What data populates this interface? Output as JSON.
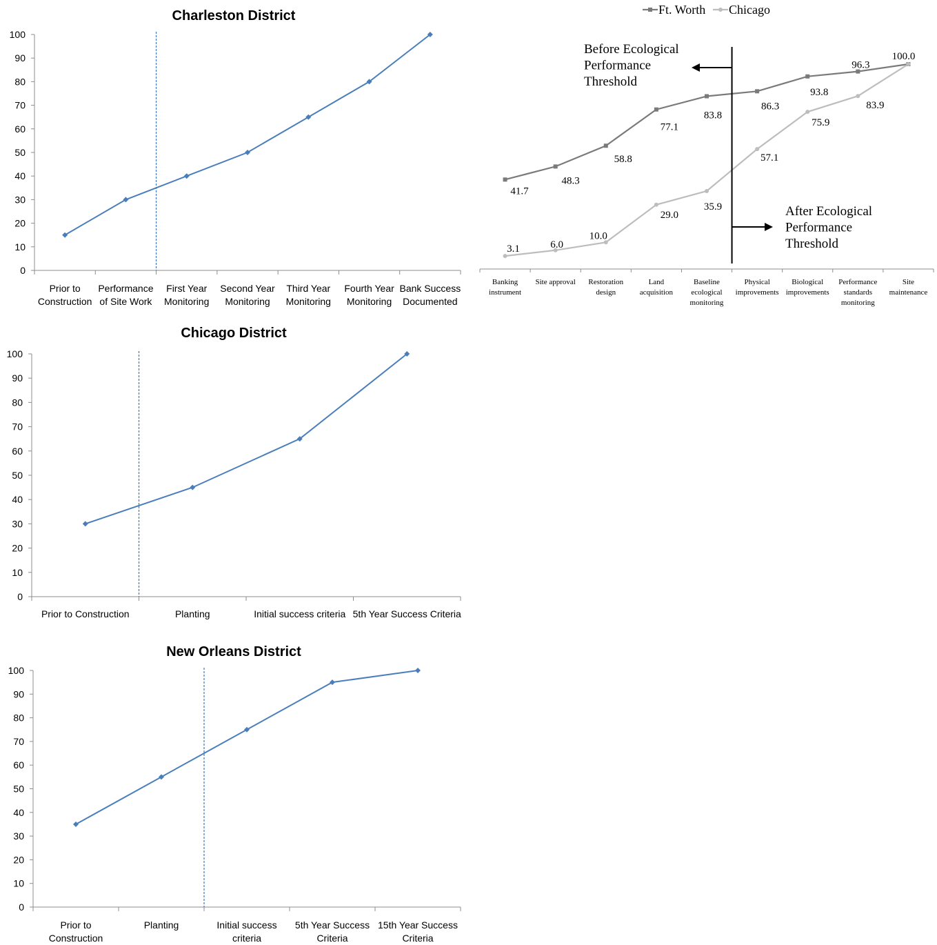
{
  "chart_data": [
    {
      "id": "charleston",
      "type": "line",
      "title": "Charleston District",
      "categories": [
        [
          "Prior to",
          "Construction"
        ],
        [
          "Performance",
          "of Site Work"
        ],
        [
          "First Year",
          "Monitoring"
        ],
        [
          "Second Year",
          "Monitoring"
        ],
        [
          "Third Year",
          "Monitoring"
        ],
        [
          "Fourth Year",
          "Monitoring"
        ],
        [
          "Bank Success",
          "Documented"
        ]
      ],
      "values": [
        15,
        30,
        40,
        50,
        65,
        80,
        100
      ],
      "ylim": [
        0,
        100
      ],
      "yticks": [
        "0",
        "10",
        "20",
        "30",
        "40",
        "50",
        "60",
        "70",
        "80",
        "90",
        "100"
      ],
      "threshold_after_category_index": 1,
      "color": "#4a7ebb"
    },
    {
      "id": "chicago",
      "type": "line",
      "title": "Chicago District",
      "categories": [
        [
          "Prior to Construction"
        ],
        [
          "Planting"
        ],
        [
          "Initial success criteria"
        ],
        [
          "5th Year Success Criteria"
        ]
      ],
      "values": [
        30,
        45,
        65,
        100
      ],
      "ylim": [
        0,
        100
      ],
      "yticks": [
        "0",
        "10",
        "20",
        "30",
        "40",
        "50",
        "60",
        "70",
        "80",
        "90",
        "100"
      ],
      "threshold_after_category_index": 0,
      "color": "#4a7ebb"
    },
    {
      "id": "neworleans",
      "type": "line",
      "title": "New Orleans District",
      "categories": [
        [
          "Prior to",
          "Construction"
        ],
        [
          "Planting"
        ],
        [
          "Initial success",
          "criteria"
        ],
        [
          "5th Year Success",
          "Criteria"
        ],
        [
          "15th Year Success",
          "Criteria"
        ]
      ],
      "values": [
        35,
        55,
        75,
        95,
        100
      ],
      "ylim": [
        0,
        100
      ],
      "yticks": [
        "0",
        "10",
        "20",
        "30",
        "40",
        "50",
        "60",
        "70",
        "80",
        "90",
        "100"
      ],
      "threshold_after_category_index": 1,
      "color": "#4a7ebb"
    },
    {
      "id": "comparison",
      "type": "line",
      "title": "",
      "categories": [
        [
          "Banking",
          "instrument"
        ],
        [
          "Site approval"
        ],
        [
          "Restoration",
          "design"
        ],
        [
          "Land",
          "acquisition"
        ],
        [
          "Baseline",
          "ecological",
          "monitoring"
        ],
        [
          "Physical",
          "improvements"
        ],
        [
          "Biological",
          "improvements"
        ],
        [
          "Performance",
          "standards",
          "monitoring"
        ],
        [
          "Site",
          "maintenance"
        ]
      ],
      "series": [
        {
          "name": "Ft. Worth",
          "values": [
            41.7,
            48.3,
            58.8,
            77.1,
            83.8,
            86.3,
            93.8,
            96.3,
            100.0
          ],
          "labels": [
            "41.7",
            "48.3",
            "58.8",
            "77.1",
            "83.8",
            "86.3",
            "93.8",
            "96.3",
            "100.0"
          ],
          "color": "#7a7a7a",
          "marker": "square"
        },
        {
          "name": "Chicago",
          "values": [
            3.1,
            6.0,
            10.0,
            29.0,
            35.9,
            57.1,
            75.9,
            83.9,
            100.0
          ],
          "labels": [
            "3.1",
            "6.0",
            "10.0",
            "29.0",
            "35.9",
            "57.1",
            "75.9",
            "83.9",
            ""
          ],
          "color": "#bdbdbd",
          "marker": "circle"
        }
      ],
      "legend_position": "top",
      "threshold_between": [
        4,
        5
      ],
      "annotations": {
        "before": [
          "Before Ecological",
          "Performance",
          "Threshold"
        ],
        "after": [
          "After Ecological",
          "Performance",
          "Threshold"
        ]
      }
    }
  ]
}
